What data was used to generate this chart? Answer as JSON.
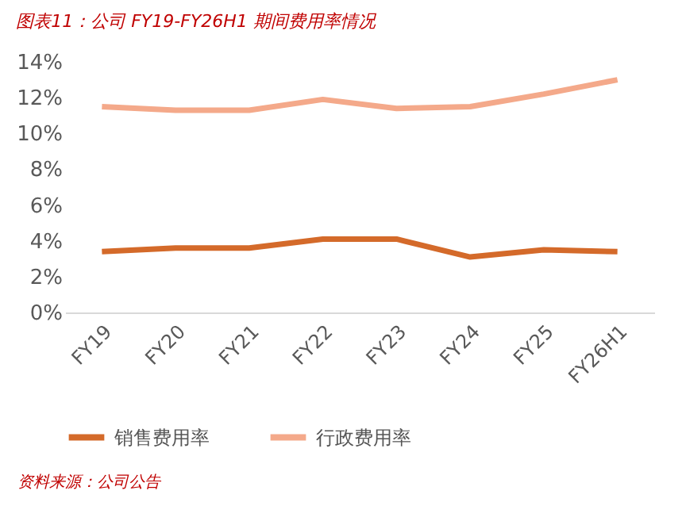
{
  "chart_data": {
    "type": "line",
    "title": "图表11：公司 FY19-FY26H1 期间费用率情况",
    "categories": [
      "FY19",
      "FY20",
      "FY21",
      "FY22",
      "FY23",
      "FY24",
      "FY25",
      "FY26H1"
    ],
    "series": [
      {
        "name": "销售费用率",
        "color": "#d46a2a",
        "values": [
          3.4,
          3.6,
          3.6,
          4.1,
          4.1,
          3.1,
          3.5,
          3.4
        ]
      },
      {
        "name": "行政费用率",
        "color": "#f4a98a",
        "values": [
          11.5,
          11.3,
          11.3,
          11.9,
          11.4,
          11.5,
          12.2,
          13.0
        ]
      }
    ],
    "ylim": [
      0,
      14
    ],
    "yticks": [
      {
        "value": 0,
        "label": "0%"
      },
      {
        "value": 2,
        "label": "2%"
      },
      {
        "value": 4,
        "label": "4%"
      },
      {
        "value": 6,
        "label": "6%"
      },
      {
        "value": 8,
        "label": "8%"
      },
      {
        "value": 10,
        "label": "10%"
      },
      {
        "value": 12,
        "label": "12%"
      },
      {
        "value": 14,
        "label": "14%"
      }
    ],
    "grid": false,
    "legend": "bottom",
    "marker": "none",
    "line_style": "solid",
    "annotations": [
      "资料来源：公司公告"
    ]
  }
}
